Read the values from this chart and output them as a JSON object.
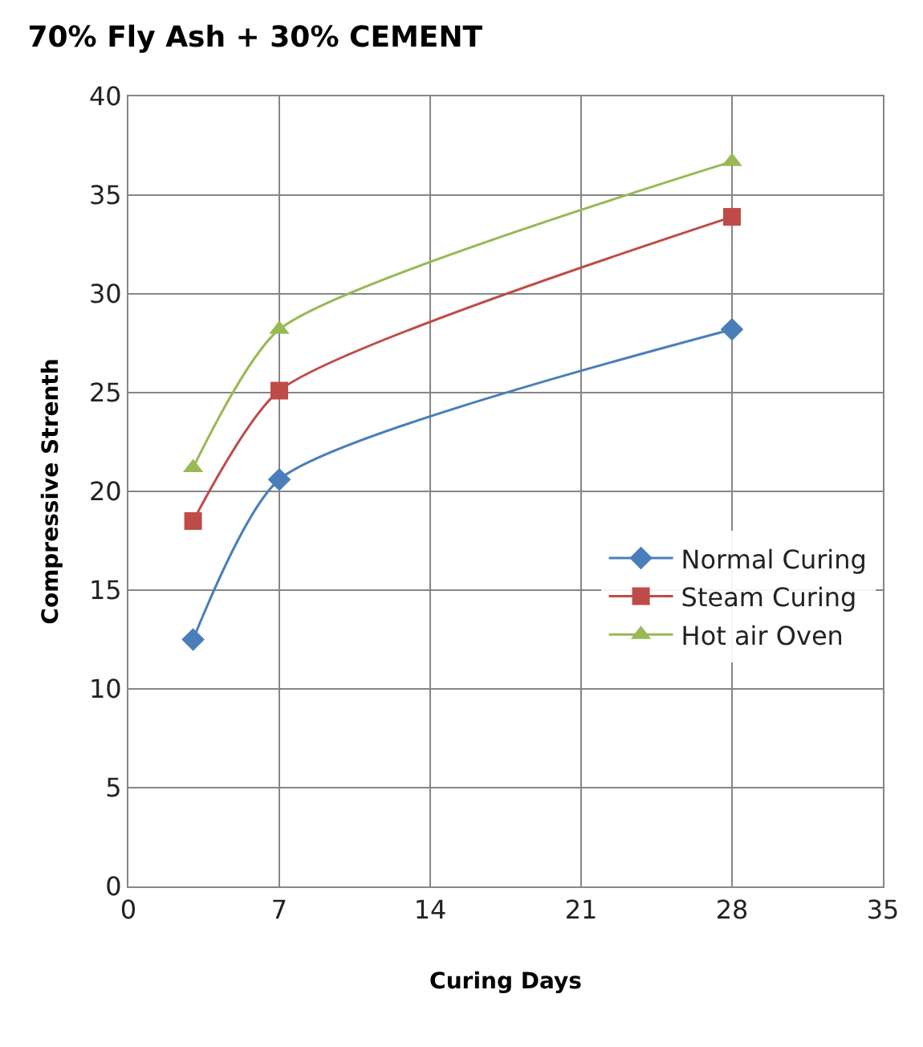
{
  "chart_data": {
    "type": "line",
    "title": "70% Fly Ash + 30% CEMENT",
    "xlabel": "Curing Days",
    "ylabel": "Compressive Strenth",
    "x": [
      3,
      7,
      28
    ],
    "series": [
      {
        "name": "Normal Curing",
        "color": "#4a7ebb",
        "marker": "diamond",
        "values": [
          12.5,
          20.6,
          28.2
        ]
      },
      {
        "name": "Steam Curing",
        "color": "#be4b48",
        "marker": "square",
        "values": [
          18.5,
          25.1,
          33.9
        ]
      },
      {
        "name": "Hot air Oven",
        "color": "#98b954",
        "marker": "triangle",
        "values": [
          21.2,
          28.2,
          36.7
        ]
      }
    ],
    "xlim": [
      0,
      35
    ],
    "xticks": [
      0,
      7,
      14,
      21,
      28,
      35
    ],
    "ylim": [
      0,
      40
    ],
    "yticks": [
      0,
      5,
      10,
      15,
      20,
      25,
      30,
      35,
      40
    ],
    "grid": true,
    "legend": "right",
    "line_style": "solid"
  }
}
